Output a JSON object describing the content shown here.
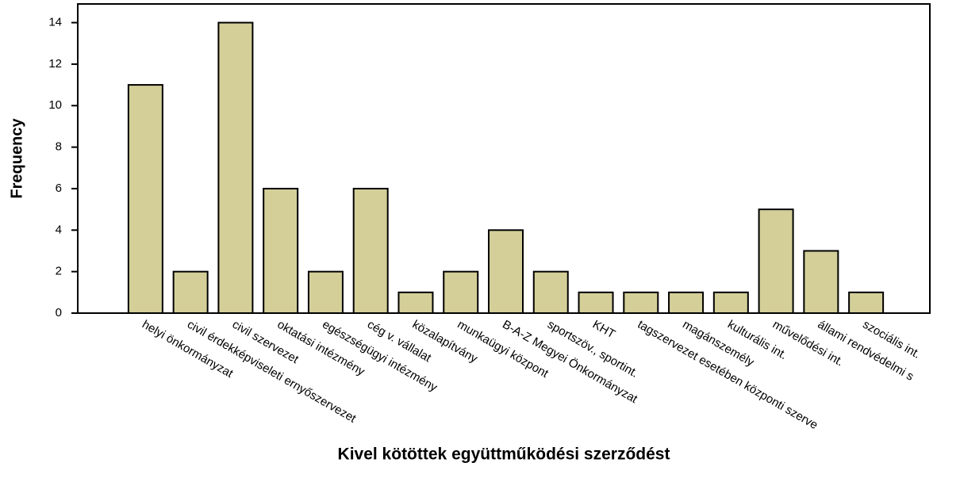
{
  "chart_data": {
    "type": "bar",
    "x_label": "Kivel kötöttek együttműködési szerződést",
    "y_label": "Frequency",
    "categories": [
      "helyi önkormányzat",
      "civil érdekképviseleti ernyőszervezet",
      "civil szervezet",
      "oktatási intézmény",
      "egészségügyi intézmény",
      "cég v. vállalat",
      "közalapítvány",
      "munkaügyi központ",
      "B-A-Z Megyei Önkormányzat",
      "sportszöv., sportint.",
      "KHT",
      "tagszervezet esetében központi szerve",
      "magánszemély",
      "kulturális int.",
      "művelődési int.",
      "állami rendvédelmi s",
      "szociális int."
    ],
    "values": [
      11,
      2,
      14,
      6,
      2,
      6,
      1,
      2,
      4,
      2,
      1,
      1,
      1,
      1,
      5,
      3,
      1
    ],
    "color": "#d4ce99",
    "ylim": [
      0,
      14.9
    ],
    "yticks": [
      0,
      2,
      4,
      6,
      8,
      10,
      12,
      14
    ]
  }
}
